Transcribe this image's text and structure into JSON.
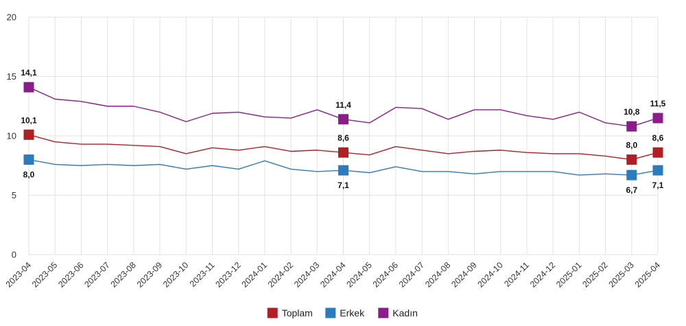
{
  "chart_data": {
    "type": "line",
    "x": [
      "2023-04",
      "2023-05",
      "2023-06",
      "2023-07",
      "2023-08",
      "2023-09",
      "2023-10",
      "2023-11",
      "2023-12",
      "2024-01",
      "2024-02",
      "2024-03",
      "2024-04",
      "2024-05",
      "2024-06",
      "2024-07",
      "2024-08",
      "2024-09",
      "2024-10",
      "2024-11",
      "2024-12",
      "2025-01",
      "2025-02",
      "2025-03",
      "2025-04"
    ],
    "ylim": [
      0,
      20
    ],
    "yticks": [
      0,
      5,
      10,
      15,
      20
    ],
    "grid": true,
    "legend_position": "bottom-center",
    "series": [
      {
        "name": "Toplam",
        "color": "#b11f24",
        "values": [
          10.1,
          9.5,
          9.3,
          9.3,
          9.2,
          9.1,
          8.5,
          9.0,
          8.8,
          9.1,
          8.7,
          8.8,
          8.6,
          8.4,
          9.1,
          8.8,
          8.5,
          8.7,
          8.8,
          8.6,
          8.5,
          8.5,
          8.3,
          8.0,
          8.6
        ],
        "labels": [
          {
            "index": 0,
            "text": "10,1",
            "position": "above"
          },
          {
            "index": 12,
            "text": "8,6",
            "position": "above"
          },
          {
            "index": 23,
            "text": "8,0",
            "position": "above"
          },
          {
            "index": 24,
            "text": "8,6",
            "position": "above"
          }
        ]
      },
      {
        "name": "Erkek",
        "color": "#2b7bbd",
        "values": [
          8.0,
          7.6,
          7.5,
          7.6,
          7.5,
          7.6,
          7.2,
          7.5,
          7.2,
          7.9,
          7.2,
          7.0,
          7.1,
          6.9,
          7.4,
          7.0,
          7.0,
          6.8,
          7.0,
          7.0,
          7.0,
          6.7,
          6.8,
          6.7,
          7.1
        ],
        "labels": [
          {
            "index": 0,
            "text": "8,0",
            "position": "below"
          },
          {
            "index": 12,
            "text": "7,1",
            "position": "below"
          },
          {
            "index": 23,
            "text": "6,7",
            "position": "below"
          },
          {
            "index": 24,
            "text": "7,1",
            "position": "below"
          }
        ]
      },
      {
        "name": "Kadın",
        "color": "#8b1d8b",
        "values": [
          14.1,
          13.1,
          12.9,
          12.5,
          12.5,
          12.0,
          11.2,
          11.9,
          12.0,
          11.6,
          11.5,
          12.2,
          11.4,
          11.1,
          12.4,
          12.3,
          11.4,
          12.2,
          12.2,
          11.7,
          11.4,
          12.0,
          11.1,
          10.8,
          11.5
        ],
        "labels": [
          {
            "index": 0,
            "text": "14,1",
            "position": "above"
          },
          {
            "index": 12,
            "text": "11,4",
            "position": "above"
          },
          {
            "index": 23,
            "text": "10,8",
            "position": "above"
          },
          {
            "index": 24,
            "text": "11,5",
            "position": "above"
          }
        ]
      }
    ],
    "markers": [
      0,
      12,
      23,
      24
    ]
  }
}
